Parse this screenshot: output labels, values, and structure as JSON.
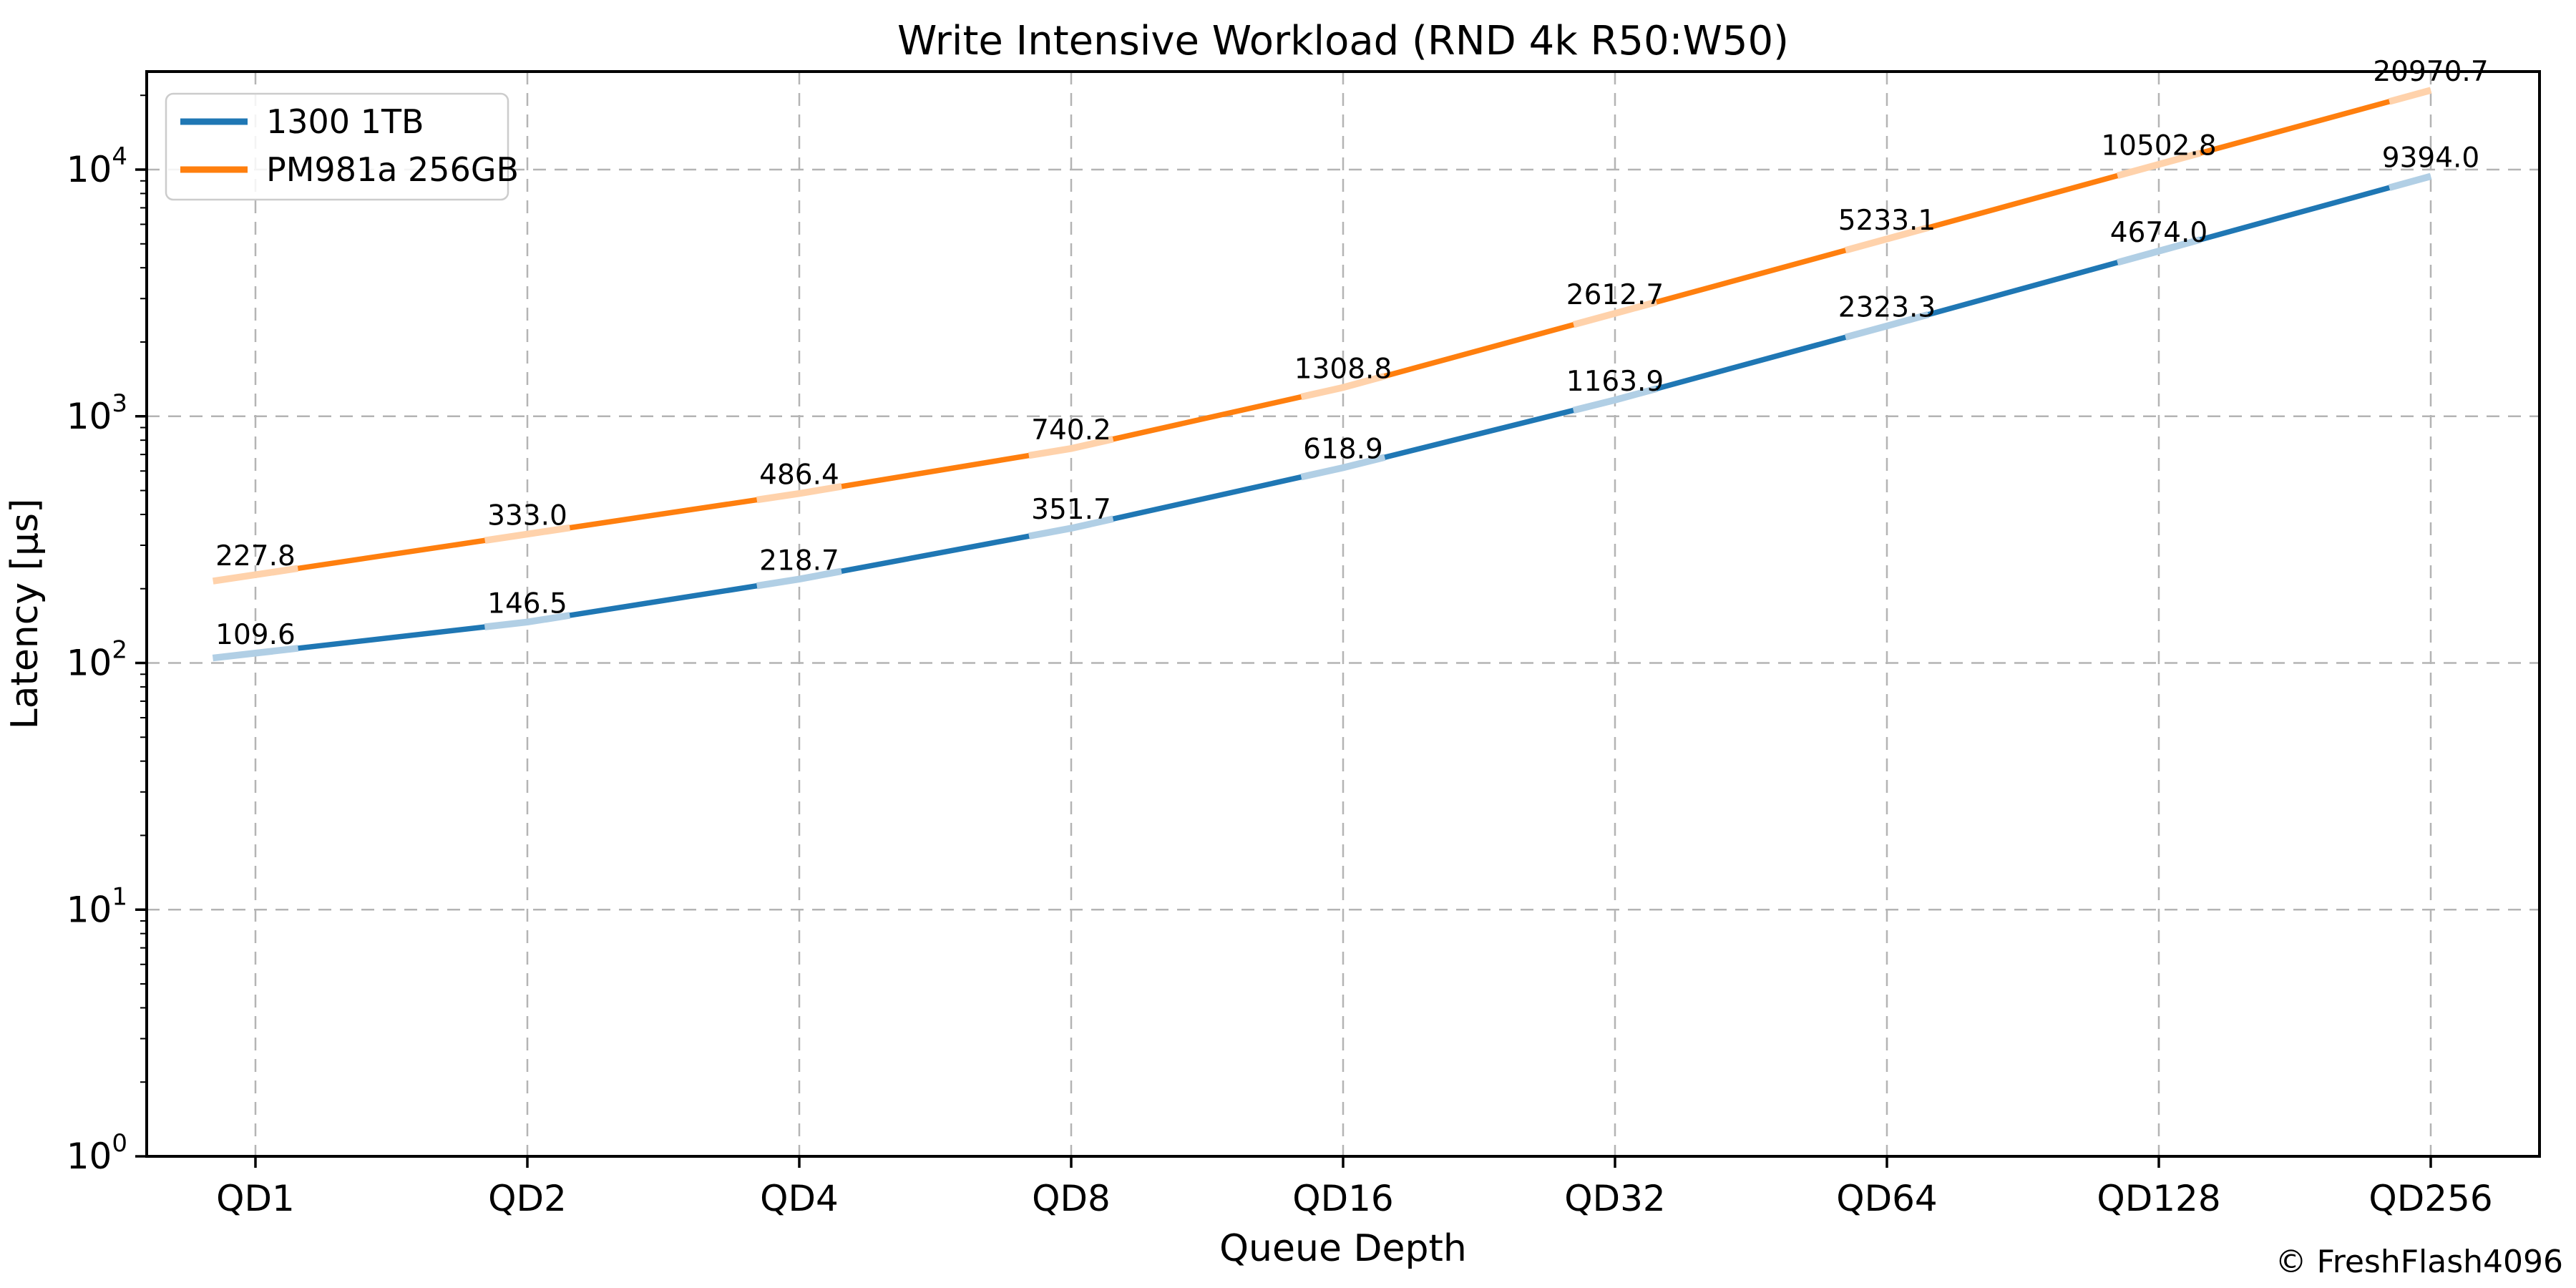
{
  "title": "Write Intensive Workload (RND 4k R50:W50)",
  "watermark": "© FreshFlash4096",
  "colors": {
    "axis": "#000000",
    "grid": "#b4b4b4",
    "legend_border": "#cccccc",
    "watermark": "#b9b9b9",
    "series1": "#1f77b4",
    "series1_light": "#b1cfe5",
    "series2": "#ff7f0e",
    "series2_light": "#ffd2ab"
  },
  "chart_data": {
    "type": "line",
    "title": "Write Intensive Workload (RND 4k R50:W50)",
    "xlabel": "Queue Depth",
    "ylabel": "Latency [µs]",
    "x_scale": "category",
    "y_scale": "log",
    "ylim": [
      1,
      24500
    ],
    "y_tick_exponents": [
      0,
      1,
      2,
      3,
      4
    ],
    "grid": {
      "visible": true,
      "style": "dashed"
    },
    "legend": {
      "position": "upper-left",
      "entries": [
        "1300 1TB",
        "PM981a 256GB"
      ]
    },
    "categories": [
      "QD1",
      "QD2",
      "QD4",
      "QD8",
      "QD16",
      "QD32",
      "QD64",
      "QD128",
      "QD256"
    ],
    "series": [
      {
        "name": "1300 1TB",
        "color": "#1f77b4",
        "light_color": "#b1cfe5",
        "values": [
          109.6,
          146.5,
          218.7,
          351.7,
          618.9,
          1163.9,
          2323.3,
          4674.0,
          9394.0
        ],
        "labels": [
          "109.6",
          "146.5",
          "218.7",
          "351.7",
          "618.9",
          "1163.9",
          "2323.3",
          "4674.0",
          "9394.0"
        ]
      },
      {
        "name": "PM981a 256GB",
        "color": "#ff7f0e",
        "light_color": "#ffd2ab",
        "values": [
          227.8,
          333.0,
          486.4,
          740.2,
          1308.8,
          2612.7,
          5233.1,
          10502.8,
          20970.7
        ],
        "labels": [
          "227.8",
          "333.0",
          "486.4",
          "740.2",
          "1308.8",
          "2612.7",
          "5233.1",
          "10502.8",
          "20970.7"
        ]
      }
    ]
  }
}
